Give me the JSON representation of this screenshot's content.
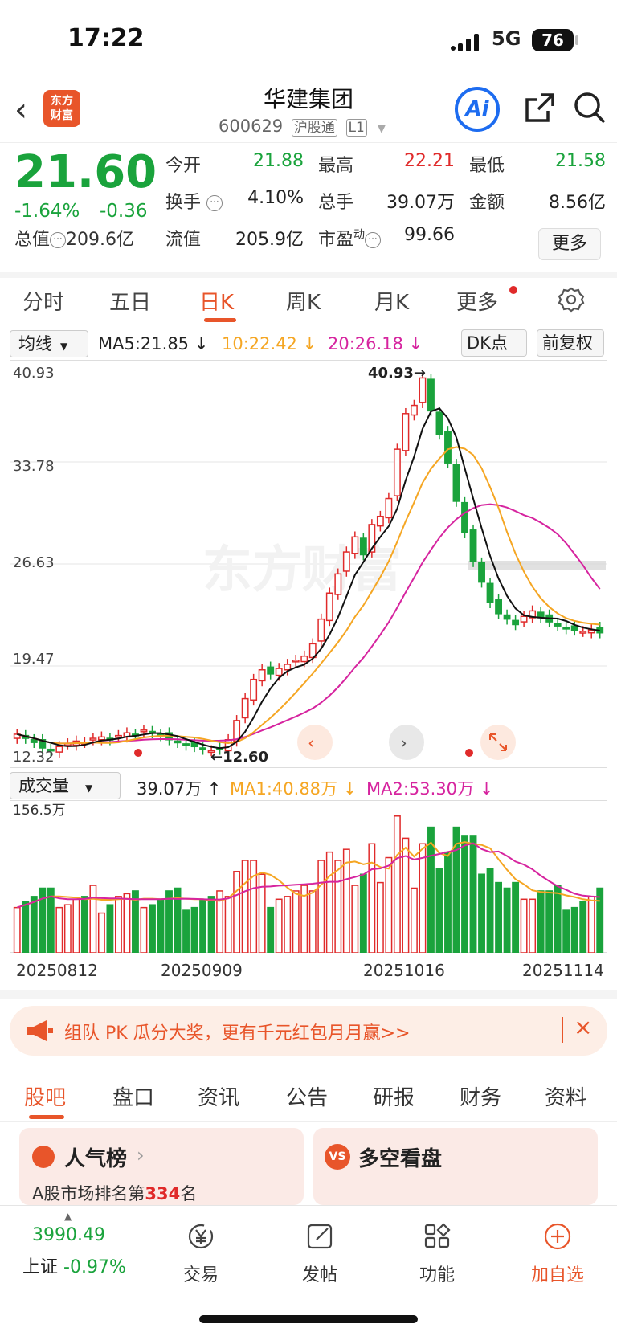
{
  "status": {
    "time": "17:22",
    "network": "5G",
    "battery": "76"
  },
  "header": {
    "name": "华建集团",
    "code": "600629",
    "tag1": "沪股通",
    "tag2": "L1",
    "logo_line1": "东方",
    "logo_line2": "财富",
    "ai": "Ai"
  },
  "quote": {
    "price": "21.60",
    "change_pct": "-1.64%",
    "change": "-0.36",
    "open_label": "今开",
    "open": "21.88",
    "high_label": "最高",
    "high": "22.21",
    "low_label": "最低",
    "low": "21.58",
    "turnover_label": "换手",
    "turnover": "4.10%",
    "volume_label": "总手",
    "volume": "39.07万",
    "amount_label": "金额",
    "amount": "8.56亿",
    "mktcap_label": "总值",
    "mktcap": "209.6亿",
    "float_label": "流值",
    "float": "205.9亿",
    "pe_label": "市盈",
    "pe_sup": "动",
    "pe": "99.66",
    "more": "更多"
  },
  "tabs": [
    "分时",
    "五日",
    "日K",
    "周K",
    "月K",
    "更多"
  ],
  "ma": {
    "select": "均线",
    "ma5": "MA5:21.85 ↓",
    "ma10": "10:22.42 ↓",
    "ma20": "20:26.18 ↓",
    "dk": "DK点",
    "adj": "前复权"
  },
  "chart_data": {
    "type": "candlestick",
    "y_ticks": [
      "40.93",
      "33.78",
      "26.63",
      "19.47",
      "12.32"
    ],
    "ylim": [
      12.32,
      40.93
    ],
    "max_label": "40.93→",
    "min_label": "←12.60",
    "watermark": "东方财富",
    "series": [
      {
        "name": "MA5",
        "color": "#111111"
      },
      {
        "name": "MA10",
        "color": "#f5a623"
      },
      {
        "name": "MA20",
        "color": "#d6249f"
      }
    ],
    "closes": [
      14.2,
      13.9,
      13.6,
      13.2,
      13.0,
      13.3,
      13.5,
      13.7,
      13.6,
      13.9,
      14.0,
      13.8,
      14.1,
      14.3,
      14.2,
      14.5,
      14.3,
      14.1,
      13.8,
      13.6,
      13.4,
      13.3,
      13.1,
      13.0,
      13.1,
      13.8,
      15.2,
      16.8,
      18.2,
      18.9,
      18.6,
      19.0,
      19.3,
      19.6,
      19.9,
      20.8,
      22.6,
      24.5,
      25.9,
      27.5,
      28.6,
      27.3,
      29.5,
      30.1,
      31.4,
      35.0,
      37.6,
      38.2,
      40.2,
      37.8,
      36.1,
      34.0,
      31.2,
      28.9,
      26.8,
      25.3,
      23.8,
      23.0,
      22.6,
      22.2,
      22.8,
      23.2,
      22.7,
      22.4,
      22.1,
      21.9,
      21.8,
      21.7,
      21.8,
      21.6
    ],
    "volume_ylim": [
      0,
      156.5
    ],
    "volume_top_label": "156.5万",
    "dates": [
      "20250812",
      "20250909",
      "20251016",
      "20251114"
    ]
  },
  "volume": {
    "select": "成交量",
    "vol": "39.07万 ↑",
    "ma1": "MA1:40.88万 ↓",
    "ma2": "MA2:53.30万 ↓"
  },
  "banner": {
    "text": "组队 PK 瓜分大奖，更有千元红包月月赢>>"
  },
  "btabs": [
    "股吧",
    "盘口",
    "资讯",
    "公告",
    "研报",
    "财务",
    "资料"
  ],
  "cards": {
    "popular_title": "人气榜",
    "popular_rank_pre": "A股市场排名第",
    "popular_rank": "334",
    "popular_rank_post": "名",
    "vs_title": "多空看盘"
  },
  "nav": {
    "index_value": "3990.49",
    "index_name": "上证",
    "index_chg": "-0.97%",
    "trade": "交易",
    "post": "发帖",
    "func": "功能",
    "watch": "加自选"
  }
}
